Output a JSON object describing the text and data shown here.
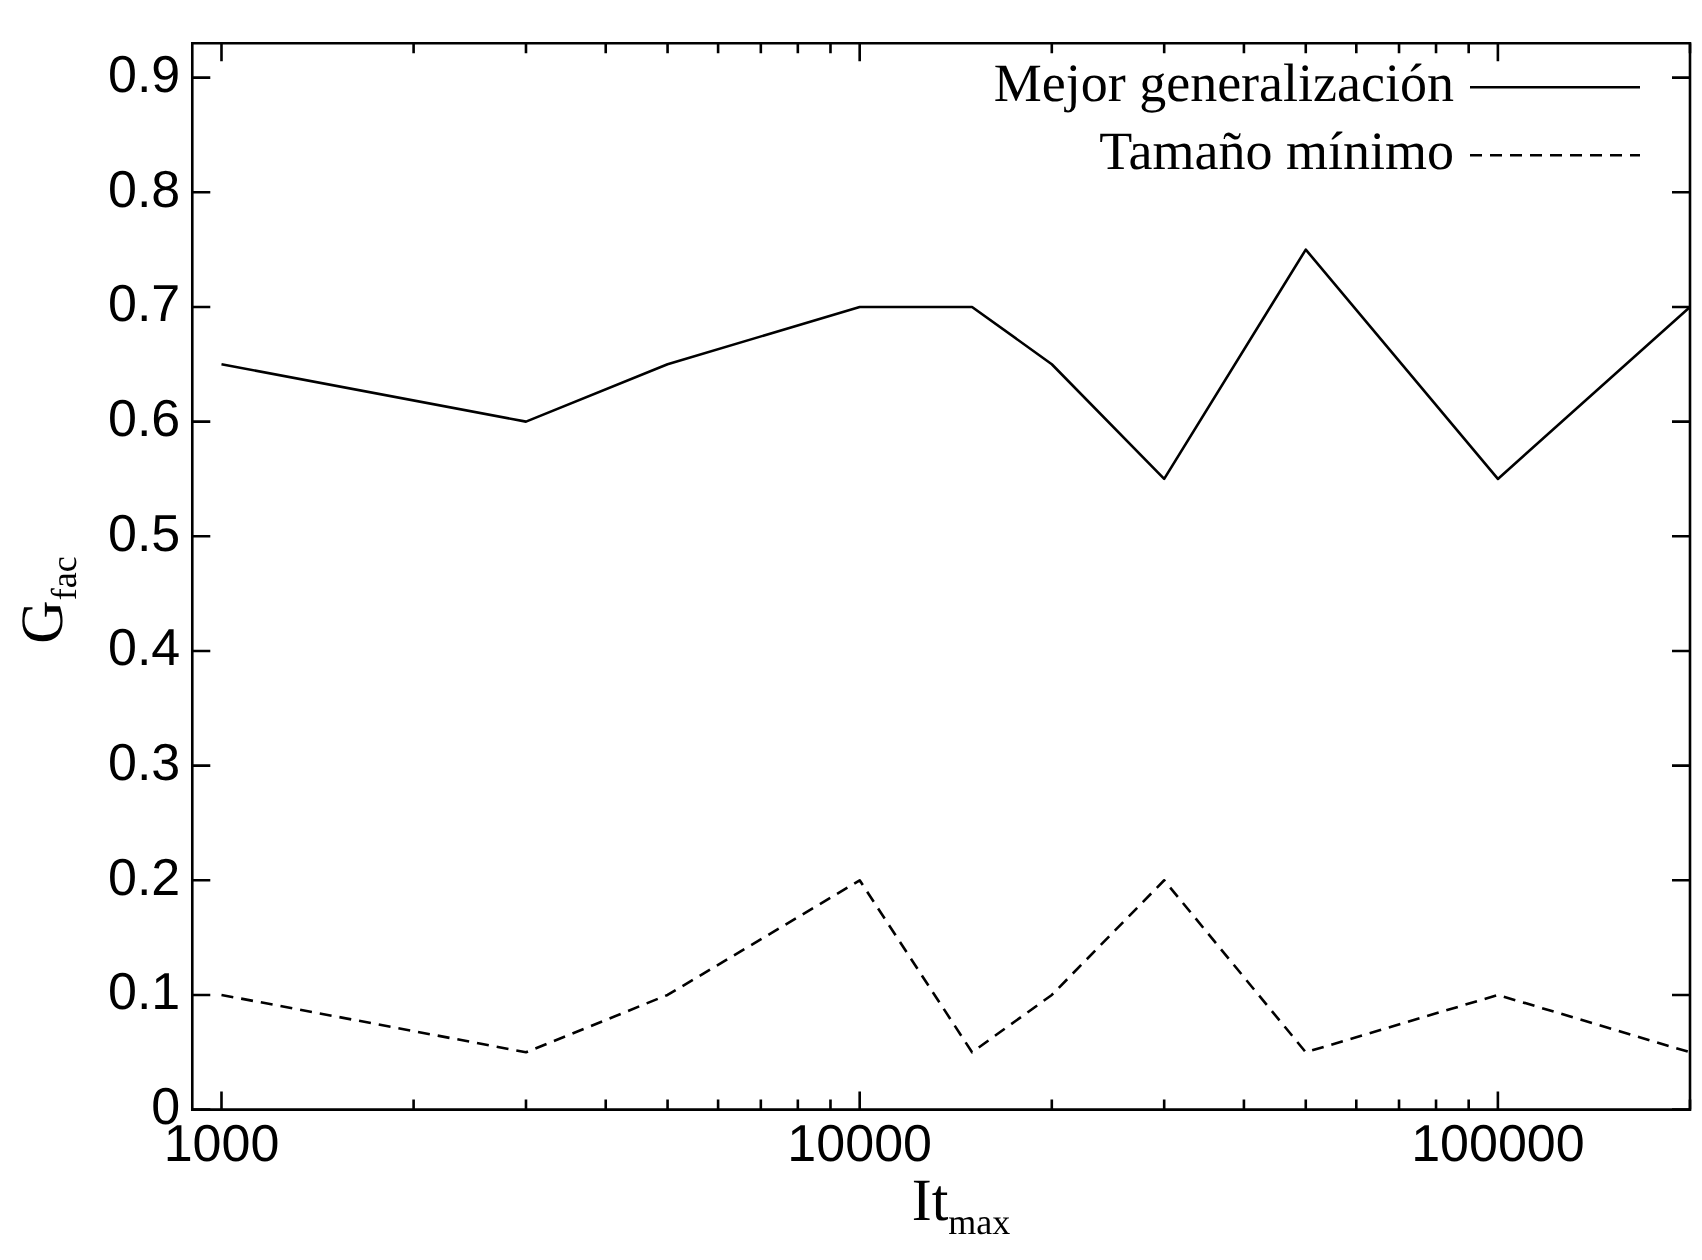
{
  "chart_data": {
    "type": "line",
    "xlabel": "It$_{max}$",
    "ylabel": "G$_{fac}$",
    "log": "x",
    "x": [
      1000,
      3000,
      5000,
      10000,
      15000,
      20000,
      30000,
      50000,
      100000,
      200000
    ],
    "series": [
      {
        "name": "Mejor generalización",
        "color": "#000000",
        "line_style": "solid",
        "values": [
          0.65,
          0.6,
          0.65,
          0.7,
          0.7,
          0.65,
          0.55,
          0.75,
          0.55,
          0.7
        ]
      },
      {
        "name": "Tamaño mínimo",
        "color": "#000000",
        "line_style": "dashed",
        "values": [
          0.1,
          0.05,
          0.1,
          0.2,
          0.05,
          0.1,
          0.2,
          0.05,
          0.1,
          0.05
        ]
      }
    ],
    "xlim": [
      900,
      200000
    ],
    "xticks": [
      1000,
      {
        "value": 2000,
        "label": null
      },
      {
        "value": 3000,
        "label": null
      },
      {
        "value": 4000,
        "label": null
      },
      {
        "value": 5000,
        "label": null
      },
      {
        "value": 6000,
        "label": null
      },
      {
        "value": 7000,
        "label": null
      },
      {
        "value": 8000,
        "label": null
      },
      {
        "value": 9000,
        "label": null
      },
      10000,
      {
        "value": 20000,
        "label": null
      },
      {
        "value": 30000,
        "label": null
      },
      {
        "value": 40000,
        "label": null
      },
      {
        "value": 50000,
        "label": null
      },
      {
        "value": 60000,
        "label": null
      },
      {
        "value": 70000,
        "label": null
      },
      {
        "value": 80000,
        "label": null
      },
      {
        "value": 90000,
        "label": null
      },
      100000,
      {
        "value": 200000,
        "label": null
      }
    ],
    "ylim": [
      0,
      0.93
    ],
    "yticks": [
      0,
      0.1,
      0.2,
      0.3,
      0.4,
      0.5,
      0.6,
      0.7,
      0.8,
      0.9
    ],
    "grid": false,
    "legend": "top right",
    "marker": "none"
  }
}
